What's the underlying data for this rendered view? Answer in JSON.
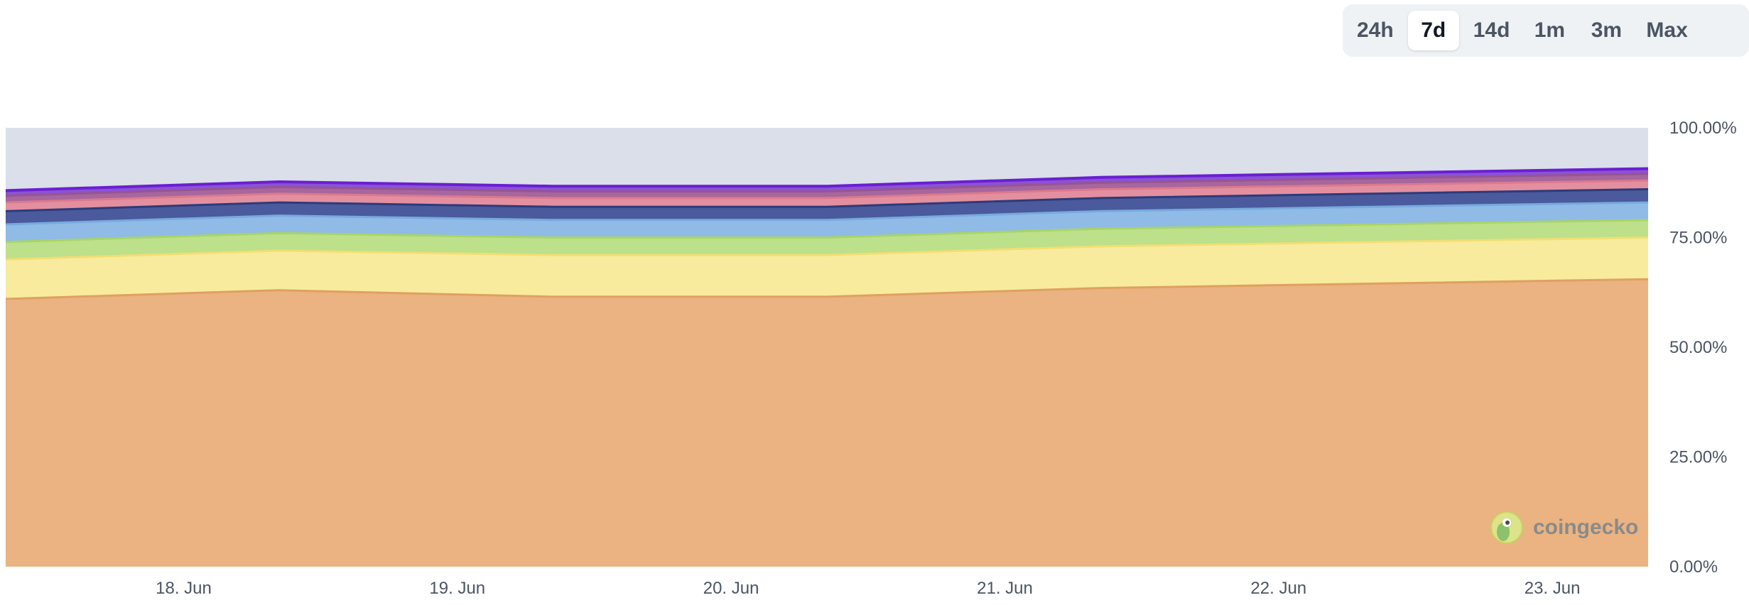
{
  "range_selector": {
    "options": [
      {
        "label": "24h",
        "active": false
      },
      {
        "label": "7d",
        "active": true
      },
      {
        "label": "14d",
        "active": false
      },
      {
        "label": "1m",
        "active": false
      },
      {
        "label": "3m",
        "active": false
      },
      {
        "label": "Max",
        "active": false
      }
    ]
  },
  "watermark": {
    "label": "coingecko"
  },
  "chart_data": {
    "type": "area",
    "stacked": true,
    "title": "",
    "xlabel": "",
    "ylabel": "",
    "x": [
      "17. Jun 09:00",
      "18. Jun 09:00",
      "19. Jun 09:00",
      "20. Jun 09:00",
      "21. Jun 09:00",
      "22. Jun 09:00",
      "23. Jun 09:00"
    ],
    "x_tick_labels": [
      "18. Jun",
      "19. Jun",
      "20. Jun",
      "21. Jun",
      "22. Jun",
      "23. Jun"
    ],
    "y_tick_labels": [
      "0.00%",
      "25.00%",
      "50.00%",
      "75.00%",
      "100.00%"
    ],
    "ylim": [
      0,
      100
    ],
    "y_format": "percent",
    "grid": false,
    "legend": "none",
    "series": [
      {
        "color": "#eab381",
        "line_color": "#e0a060",
        "values": [
          61.0,
          63.0,
          61.5,
          61.5,
          63.5,
          64.5,
          65.5
        ]
      },
      {
        "color": "#f8eb9e",
        "line_color": "#f2de74",
        "values": [
          9.0,
          9.0,
          9.5,
          9.5,
          9.5,
          9.5,
          9.5
        ]
      },
      {
        "color": "#bde08a",
        "line_color": "#a8d468",
        "values": [
          4.0,
          4.0,
          4.0,
          4.0,
          4.0,
          4.0,
          4.0
        ]
      },
      {
        "color": "#8fbbe6",
        "line_color": "#78a9dd",
        "values": [
          4.0,
          4.0,
          4.0,
          4.0,
          4.0,
          4.0,
          4.0
        ]
      },
      {
        "color": "#4a5a9c",
        "line_color": "#2c3b7a",
        "values": [
          3.0,
          3.0,
          3.0,
          3.0,
          3.0,
          3.0,
          3.0
        ]
      },
      {
        "color": "#e48f9f",
        "line_color": "#db7a8d",
        "values": [
          2.0,
          2.0,
          2.0,
          2.0,
          2.0,
          2.0,
          2.0
        ]
      },
      {
        "color": "#a7669e",
        "line_color": "#965590",
        "values": [
          1.5,
          1.5,
          1.5,
          1.5,
          1.5,
          1.5,
          1.5
        ]
      },
      {
        "color": "#8c52d6",
        "line_color": "#6a1fd1",
        "values": [
          1.2,
          1.2,
          1.2,
          1.2,
          1.2,
          1.2,
          1.2
        ]
      },
      {
        "color": "#dadfe9",
        "line_color": "#d3d9e3",
        "values": [
          14.3,
          12.3,
          13.3,
          13.3,
          11.3,
          10.3,
          9.3
        ]
      }
    ]
  }
}
